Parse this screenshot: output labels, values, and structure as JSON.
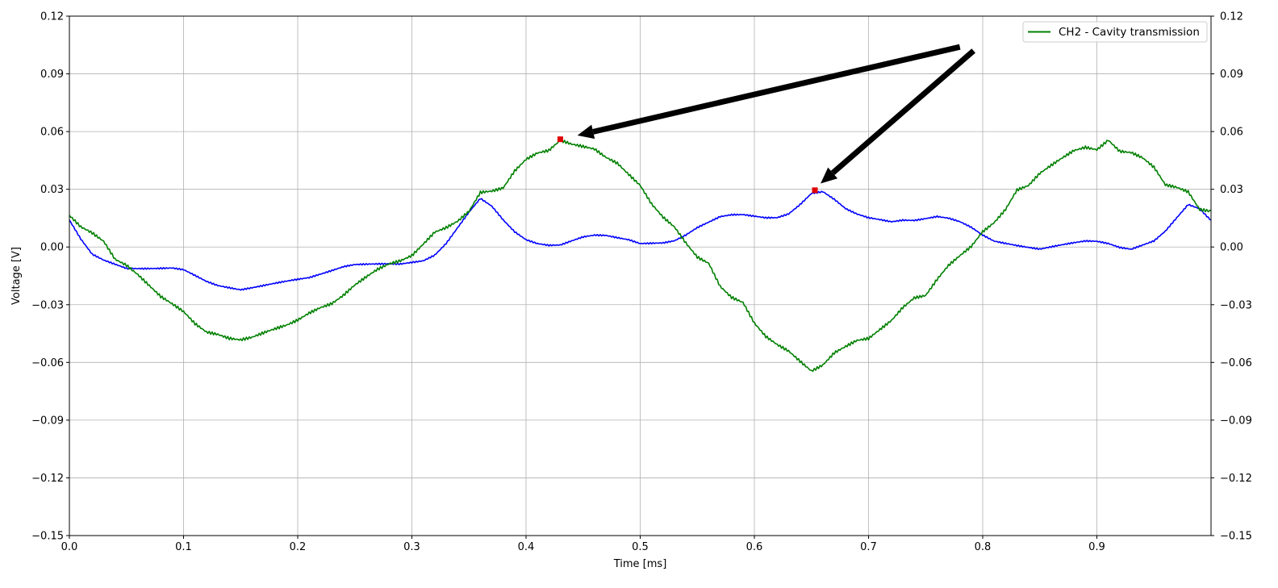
{
  "chart_data": {
    "type": "line",
    "xlabel": "Time [ms]",
    "ylabel": "Voltage [V]",
    "xlim": [
      0,
      1.0
    ],
    "ylim": [
      -0.15,
      0.12
    ],
    "x_ticks": [
      0.0,
      0.1,
      0.2,
      0.3,
      0.4,
      0.5,
      0.6,
      0.7,
      0.8,
      0.9
    ],
    "x_tick_labels": [
      "0.0",
      "0.1",
      "0.2",
      "0.3",
      "0.4",
      "0.5",
      "0.6",
      "0.7",
      "0.8",
      "0.9"
    ],
    "y_ticks": [
      0.12,
      0.09,
      0.06,
      0.03,
      0.0,
      -0.03,
      -0.06,
      -0.09,
      -0.12,
      -0.15
    ],
    "y_tick_labels": [
      "0.12",
      "0.09",
      "0.06",
      "0.03",
      "0.00",
      "−0.03",
      "−0.06",
      "−0.09",
      "−0.12",
      "−0.15"
    ],
    "right_y_tick_labels": [
      "0.12",
      "0.09",
      "0.06",
      "0.03",
      "0.00",
      "−0.03",
      "−0.06",
      "−0.09",
      "−0.12",
      "−0.15"
    ],
    "grid": true,
    "legend_position": "top-right",
    "series": [
      {
        "name": "",
        "color": "#0000ff",
        "x": [
          0.0,
          0.01,
          0.02,
          0.03,
          0.04,
          0.05,
          0.06,
          0.07,
          0.08,
          0.09,
          0.1,
          0.11,
          0.12,
          0.13,
          0.14,
          0.15,
          0.16,
          0.17,
          0.18,
          0.19,
          0.2,
          0.21,
          0.22,
          0.23,
          0.24,
          0.25,
          0.26,
          0.27,
          0.28,
          0.29,
          0.3,
          0.31,
          0.32,
          0.33,
          0.34,
          0.35,
          0.36,
          0.37,
          0.38,
          0.39,
          0.4,
          0.41,
          0.42,
          0.43,
          0.44,
          0.45,
          0.46,
          0.47,
          0.48,
          0.49,
          0.5,
          0.51,
          0.52,
          0.53,
          0.54,
          0.55,
          0.56,
          0.57,
          0.58,
          0.59,
          0.6,
          0.61,
          0.62,
          0.63,
          0.64,
          0.65,
          0.66,
          0.67,
          0.68,
          0.69,
          0.7,
          0.71,
          0.72,
          0.73,
          0.74,
          0.75,
          0.76,
          0.77,
          0.78,
          0.79,
          0.8,
          0.81,
          0.82,
          0.83,
          0.84,
          0.85,
          0.86,
          0.87,
          0.88,
          0.89,
          0.9,
          0.91,
          0.92,
          0.93,
          0.94,
          0.95,
          0.96,
          0.97,
          0.98,
          0.99,
          1.0
        ],
        "y": [
          0.014,
          0.004,
          -0.004,
          -0.007,
          -0.009,
          -0.011,
          -0.011,
          -0.011,
          -0.011,
          -0.011,
          -0.012,
          -0.015,
          -0.018,
          -0.02,
          -0.021,
          -0.022,
          -0.021,
          -0.02,
          -0.019,
          -0.018,
          -0.017,
          -0.016,
          -0.014,
          -0.012,
          -0.01,
          -0.009,
          -0.009,
          -0.009,
          -0.009,
          -0.009,
          -0.008,
          -0.007,
          -0.004,
          0.002,
          0.01,
          0.018,
          0.025,
          0.021,
          0.014,
          0.008,
          0.004,
          0.002,
          0.001,
          0.001,
          0.003,
          0.005,
          0.006,
          0.006,
          0.005,
          0.004,
          0.002,
          0.002,
          0.002,
          0.003,
          0.006,
          0.01,
          0.013,
          0.016,
          0.017,
          0.017,
          0.016,
          0.015,
          0.015,
          0.017,
          0.022,
          0.028,
          0.029,
          0.025,
          0.02,
          0.017,
          0.015,
          0.014,
          0.013,
          0.014,
          0.014,
          0.015,
          0.016,
          0.015,
          0.013,
          0.01,
          0.006,
          0.003,
          0.002,
          0.001,
          0.0,
          -0.001,
          0.0,
          0.001,
          0.002,
          0.003,
          0.003,
          0.002,
          0.0,
          -0.001,
          0.001,
          0.003,
          0.008,
          0.015,
          0.022,
          0.02,
          0.014
        ]
      },
      {
        "name": "CH2 - Cavity transmission",
        "color": "#008000",
        "x": [
          0.0,
          0.01,
          0.02,
          0.03,
          0.04,
          0.05,
          0.06,
          0.07,
          0.08,
          0.09,
          0.1,
          0.11,
          0.12,
          0.13,
          0.14,
          0.15,
          0.16,
          0.17,
          0.18,
          0.19,
          0.2,
          0.21,
          0.22,
          0.23,
          0.24,
          0.25,
          0.26,
          0.27,
          0.28,
          0.29,
          0.3,
          0.31,
          0.32,
          0.33,
          0.34,
          0.35,
          0.36,
          0.37,
          0.38,
          0.39,
          0.4,
          0.41,
          0.42,
          0.43,
          0.44,
          0.45,
          0.46,
          0.47,
          0.48,
          0.49,
          0.5,
          0.51,
          0.52,
          0.53,
          0.54,
          0.55,
          0.56,
          0.57,
          0.58,
          0.59,
          0.6,
          0.61,
          0.62,
          0.63,
          0.64,
          0.65,
          0.66,
          0.67,
          0.68,
          0.69,
          0.7,
          0.71,
          0.72,
          0.73,
          0.74,
          0.75,
          0.76,
          0.77,
          0.78,
          0.79,
          0.8,
          0.81,
          0.82,
          0.83,
          0.84,
          0.85,
          0.86,
          0.87,
          0.88,
          0.89,
          0.9,
          0.91,
          0.92,
          0.93,
          0.94,
          0.95,
          0.96,
          0.97,
          0.98,
          0.99,
          1.0
        ],
        "y": [
          0.016,
          0.01,
          0.007,
          0.003,
          -0.006,
          -0.009,
          -0.014,
          -0.02,
          -0.026,
          -0.03,
          -0.034,
          -0.04,
          -0.044,
          -0.045,
          -0.047,
          -0.048,
          -0.047,
          -0.045,
          -0.043,
          -0.041,
          -0.038,
          -0.034,
          -0.031,
          -0.029,
          -0.025,
          -0.02,
          -0.016,
          -0.012,
          -0.009,
          -0.007,
          -0.004,
          0.002,
          0.008,
          0.01,
          0.013,
          0.018,
          0.028,
          0.029,
          0.031,
          0.04,
          0.046,
          0.049,
          0.05,
          0.055,
          0.053,
          0.052,
          0.051,
          0.047,
          0.044,
          0.038,
          0.032,
          0.022,
          0.015,
          0.01,
          0.002,
          -0.005,
          -0.008,
          -0.02,
          -0.026,
          -0.029,
          -0.04,
          -0.047,
          -0.051,
          -0.054,
          -0.059,
          -0.064,
          -0.061,
          -0.055,
          -0.052,
          -0.049,
          -0.048,
          -0.043,
          -0.038,
          -0.031,
          -0.026,
          -0.025,
          -0.017,
          -0.01,
          -0.005,
          0.0,
          0.008,
          0.013,
          0.02,
          0.03,
          0.032,
          0.038,
          0.042,
          0.046,
          0.05,
          0.052,
          0.051,
          0.056,
          0.05,
          0.049,
          0.046,
          0.041,
          0.032,
          0.031,
          0.029,
          0.02,
          0.019
        ]
      }
    ],
    "markers": [
      {
        "x": 0.43,
        "y": 0.056,
        "color": "#e00000"
      },
      {
        "x": 0.653,
        "y": 0.0295,
        "color": "#e00000"
      }
    ],
    "annotations": [
      {
        "type": "arrow",
        "tail_x": 0.78,
        "tail_y": 0.104,
        "head_x": 0.445,
        "head_y": 0.058
      },
      {
        "type": "arrow",
        "tail_x": 0.792,
        "tail_y": 0.102,
        "head_x": 0.658,
        "head_y": 0.033
      }
    ]
  }
}
